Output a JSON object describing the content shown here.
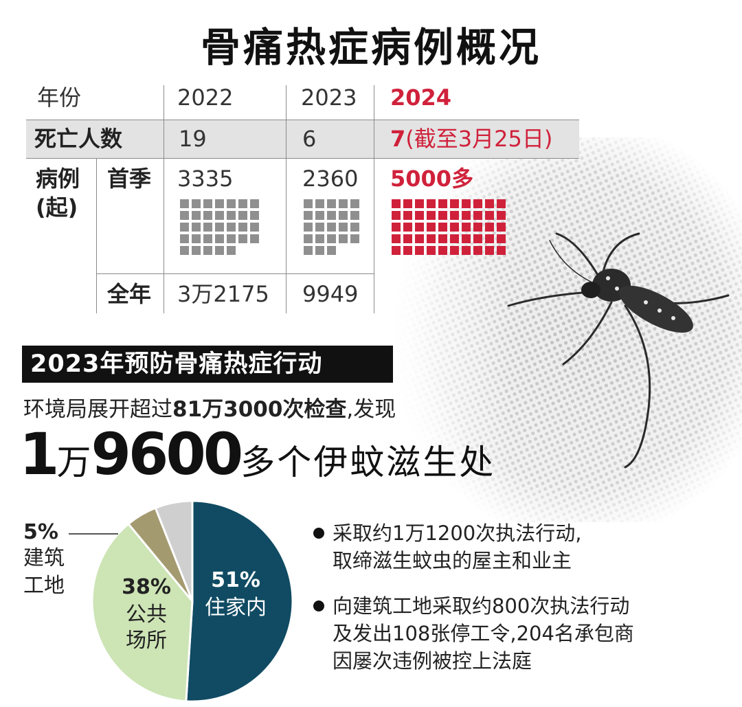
{
  "title": "骨痛热症病例概况",
  "table": {
    "header_label": "年份",
    "years": [
      "2022",
      "2023",
      "2024"
    ],
    "deaths_label": "死亡人数",
    "deaths": [
      "19",
      "6",
      "7"
    ],
    "deaths_2024_note": "(截至3月25日)",
    "cases_label_line1": "病例",
    "cases_label_line2": "(起)",
    "first_quarter_label": "首季",
    "first_quarter": [
      "3335",
      "2360",
      "5000多"
    ],
    "full_year_label": "全年",
    "full_year": [
      "3万2175",
      "9949"
    ]
  },
  "colors": {
    "red": "#d0213b",
    "waffle_gray": "#8f8f8f",
    "navy": "#104b63",
    "light_green": "#cde4b5",
    "olive": "#a49a70",
    "light_gray": "#cfcfcf"
  },
  "section": {
    "banner": "2023年预防骨痛热症行动",
    "inspect_prefix": "环境局展开超过",
    "inspect_bold": "81万3000次检查",
    "inspect_suffix": ",发现",
    "big_num1": "1",
    "big_unit": "万",
    "big_num2": "9600",
    "big_rest": "多个伊蚊滋生处"
  },
  "chart_data": {
    "type": "pie",
    "slices": [
      {
        "label": "住家内",
        "value": 51,
        "color": "#104b63"
      },
      {
        "label": "公共场所",
        "value": 38,
        "color": "#cde4b5"
      },
      {
        "label": "建筑工地",
        "value": 5,
        "color": "#a49a70"
      },
      {
        "label": "",
        "value": 6,
        "color": "#cfcfcf"
      }
    ],
    "labels": {
      "home_pct": "51%",
      "home_text": "住家内",
      "public_pct": "38%",
      "public_line1": "公共",
      "public_line2": "场所",
      "construction_pct": "5%",
      "construction_line1": "建筑",
      "construction_line2": "工地"
    }
  },
  "bullets": [
    {
      "line1": "采取约1万1200次执法行动,",
      "line2": "取缔滋生蚊虫的屋主和业主"
    },
    {
      "line1": "向建筑工地采取约800次执法行动",
      "line2": "及发出108张停工令,204名承包商",
      "line3": "因屡次违例被控上法庭"
    }
  ]
}
